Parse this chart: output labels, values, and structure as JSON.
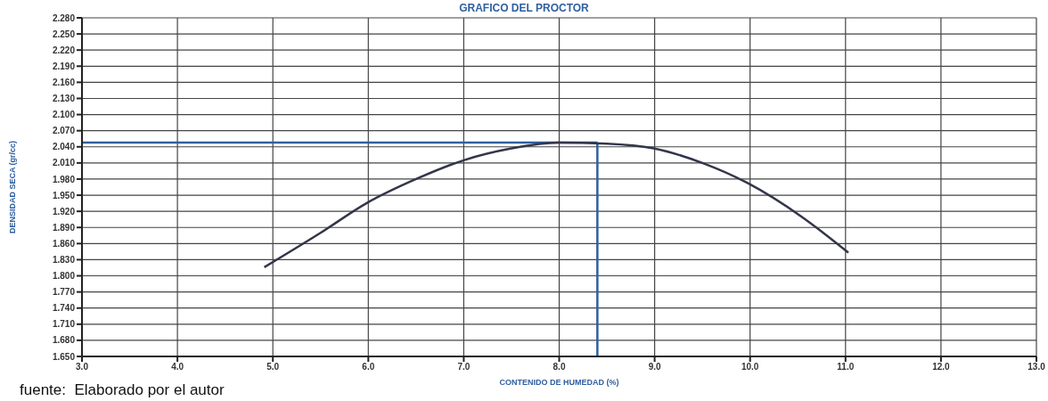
{
  "chart_data": {
    "type": "line",
    "title": "GRAFICO DEL PROCTOR",
    "xlabel": "CONTENIDO DE HUMEDAD (%)",
    "ylabel": "DENSIDAD SECA (gr/cc)",
    "annotations": [
      "fuente:  Elaborado por el autor"
    ],
    "x": [
      4.91,
      5.5,
      5.98,
      6.5,
      7.0,
      7.5,
      7.99,
      8.5,
      8.99,
      9.5,
      9.97,
      10.54,
      11.03
    ],
    "series": [
      {
        "color": "#33364a",
        "values": [
          1.816,
          1.88,
          1.935,
          1.98,
          2.015,
          2.037,
          2.048,
          2.046,
          2.037,
          2.01,
          1.973,
          1.91,
          1.843
        ]
      }
    ],
    "xlim": [
      3,
      13
    ],
    "xticks": [
      {
        "value": 3,
        "label": "3.0"
      },
      {
        "value": 4,
        "label": "4.0"
      },
      {
        "value": 5,
        "label": "5.0"
      },
      {
        "value": 6,
        "label": "6.0"
      },
      {
        "value": 7,
        "label": "7.0"
      },
      {
        "value": 8,
        "label": "8.0"
      },
      {
        "value": 9,
        "label": "9.0"
      },
      {
        "value": 10,
        "label": "10.0"
      },
      {
        "value": 11,
        "label": "11.0"
      },
      {
        "value": 12,
        "label": "12.0"
      },
      {
        "value": 13,
        "label": "13.0"
      }
    ],
    "ylim": [
      1.65,
      2.28
    ],
    "yticks": [
      {
        "value": 1.65,
        "label": "1.650"
      },
      {
        "value": 1.68,
        "label": "1.680"
      },
      {
        "value": 1.71,
        "label": "1.710"
      },
      {
        "value": 1.74,
        "label": "1.740"
      },
      {
        "value": 1.77,
        "label": "1.770"
      },
      {
        "value": 1.8,
        "label": "1.800"
      },
      {
        "value": 1.83,
        "label": "1.830"
      },
      {
        "value": 1.86,
        "label": "1.860"
      },
      {
        "value": 1.89,
        "label": "1.890"
      },
      {
        "value": 1.92,
        "label": "1.920"
      },
      {
        "value": 1.95,
        "label": "1.950"
      },
      {
        "value": 1.98,
        "label": "1.980"
      },
      {
        "value": 2.01,
        "label": "2.010"
      },
      {
        "value": 2.04,
        "label": "2.040"
      },
      {
        "value": 2.07,
        "label": "2.070"
      },
      {
        "value": 2.1,
        "label": "2.100"
      },
      {
        "value": 2.13,
        "label": "2.130"
      },
      {
        "value": 2.16,
        "label": "2.160"
      },
      {
        "value": 2.19,
        "label": "2.190"
      },
      {
        "value": 2.22,
        "label": "2.220"
      },
      {
        "value": 2.25,
        "label": "2.250"
      },
      {
        "value": 2.28,
        "label": "2.280"
      }
    ],
    "ref_lines": [
      {
        "axis": "y",
        "value": 2.048,
        "color": "#2f5fa0"
      },
      {
        "axis": "x",
        "value": 8.4,
        "color": "#2f5fa0"
      }
    ],
    "grid": true,
    "marker": "none",
    "line_style": "solid"
  }
}
